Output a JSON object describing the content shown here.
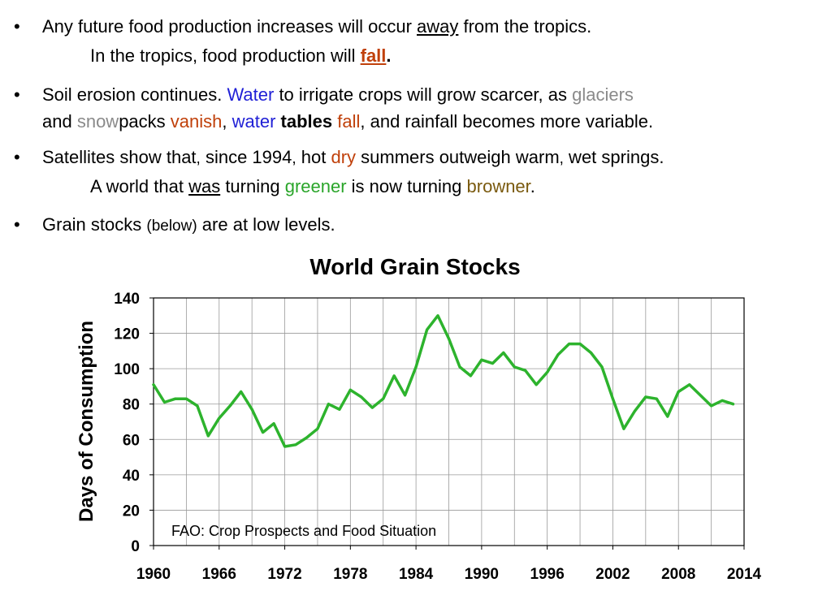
{
  "bullets": [
    {
      "line1": {
        "a": "Any future food production increases will occur ",
        "b": "away",
        "c": " from the tropics."
      },
      "line2": {
        "a": "In the tropics, food production will ",
        "b": "fall",
        "c": "."
      }
    },
    {
      "line1": {
        "a": "Soil erosion continues.  ",
        "b": "Water",
        "c": " to irrigate crops will grow scarcer, as ",
        "d": "glaciers"
      },
      "line2": {
        "a": "and ",
        "b": "snow",
        "c": "packs ",
        "d": "vanish",
        "e": ", ",
        "f": "water",
        "g": " ",
        "h": "tables",
        "i": " ",
        "j": "fall",
        "k": ", and rainfall becomes more variable."
      }
    },
    {
      "line1": {
        "a": "Satellites show that",
        "b": ",",
        "c": " since 1994",
        "d": ",",
        "e": " hot ",
        "f": "dry",
        "g": " summers outweigh warm",
        "h": ",",
        "i": " wet springs."
      },
      "line2": {
        "a": "A world that ",
        "b": "was",
        "c": " turning ",
        "d": "greener",
        "e": " is now turning ",
        "f": "browner",
        "g": "."
      }
    },
    {
      "line1": {
        "a": "Grain stocks ",
        "b": "(below)",
        "c": " are at low levels."
      }
    }
  ],
  "bullet_symbol": "•",
  "chart_data": {
    "type": "line",
    "title": "World Grain Stocks",
    "ylabel": "Days of Consumption",
    "xlabel": "",
    "xlim": [
      1960,
      2014
    ],
    "ylim": [
      0,
      140
    ],
    "x_ticks": [
      1960,
      1966,
      1972,
      1978,
      1984,
      1990,
      1996,
      2002,
      2008,
      2014
    ],
    "y_ticks": [
      0,
      20,
      40,
      60,
      80,
      100,
      120,
      140
    ],
    "grid": true,
    "annotation": "FAO: Crop Prospects and Food Situation",
    "series": [
      {
        "color": "#2db32d",
        "x": [
          1960,
          1961,
          1962,
          1963,
          1964,
          1965,
          1966,
          1967,
          1968,
          1969,
          1970,
          1971,
          1972,
          1973,
          1974,
          1975,
          1976,
          1977,
          1978,
          1979,
          1980,
          1981,
          1982,
          1983,
          1984,
          1985,
          1986,
          1987,
          1988,
          1989,
          1990,
          1991,
          1992,
          1993,
          1994,
          1995,
          1996,
          1997,
          1998,
          1999,
          2000,
          2001,
          2002,
          2003,
          2004,
          2005,
          2006,
          2007,
          2008,
          2009,
          2010,
          2011,
          2012,
          2013
        ],
        "y": [
          91,
          81,
          83,
          83,
          79,
          62,
          72,
          79,
          87,
          77,
          64,
          69,
          56,
          57,
          61,
          66,
          80,
          77,
          88,
          84,
          78,
          83,
          96,
          85,
          101,
          122,
          130,
          117,
          101,
          96,
          105,
          103,
          109,
          101,
          99,
          91,
          98,
          108,
          114,
          114,
          109,
          101,
          83,
          66,
          76,
          84,
          83,
          73,
          87,
          91,
          85,
          79,
          82,
          80
        ]
      }
    ]
  }
}
